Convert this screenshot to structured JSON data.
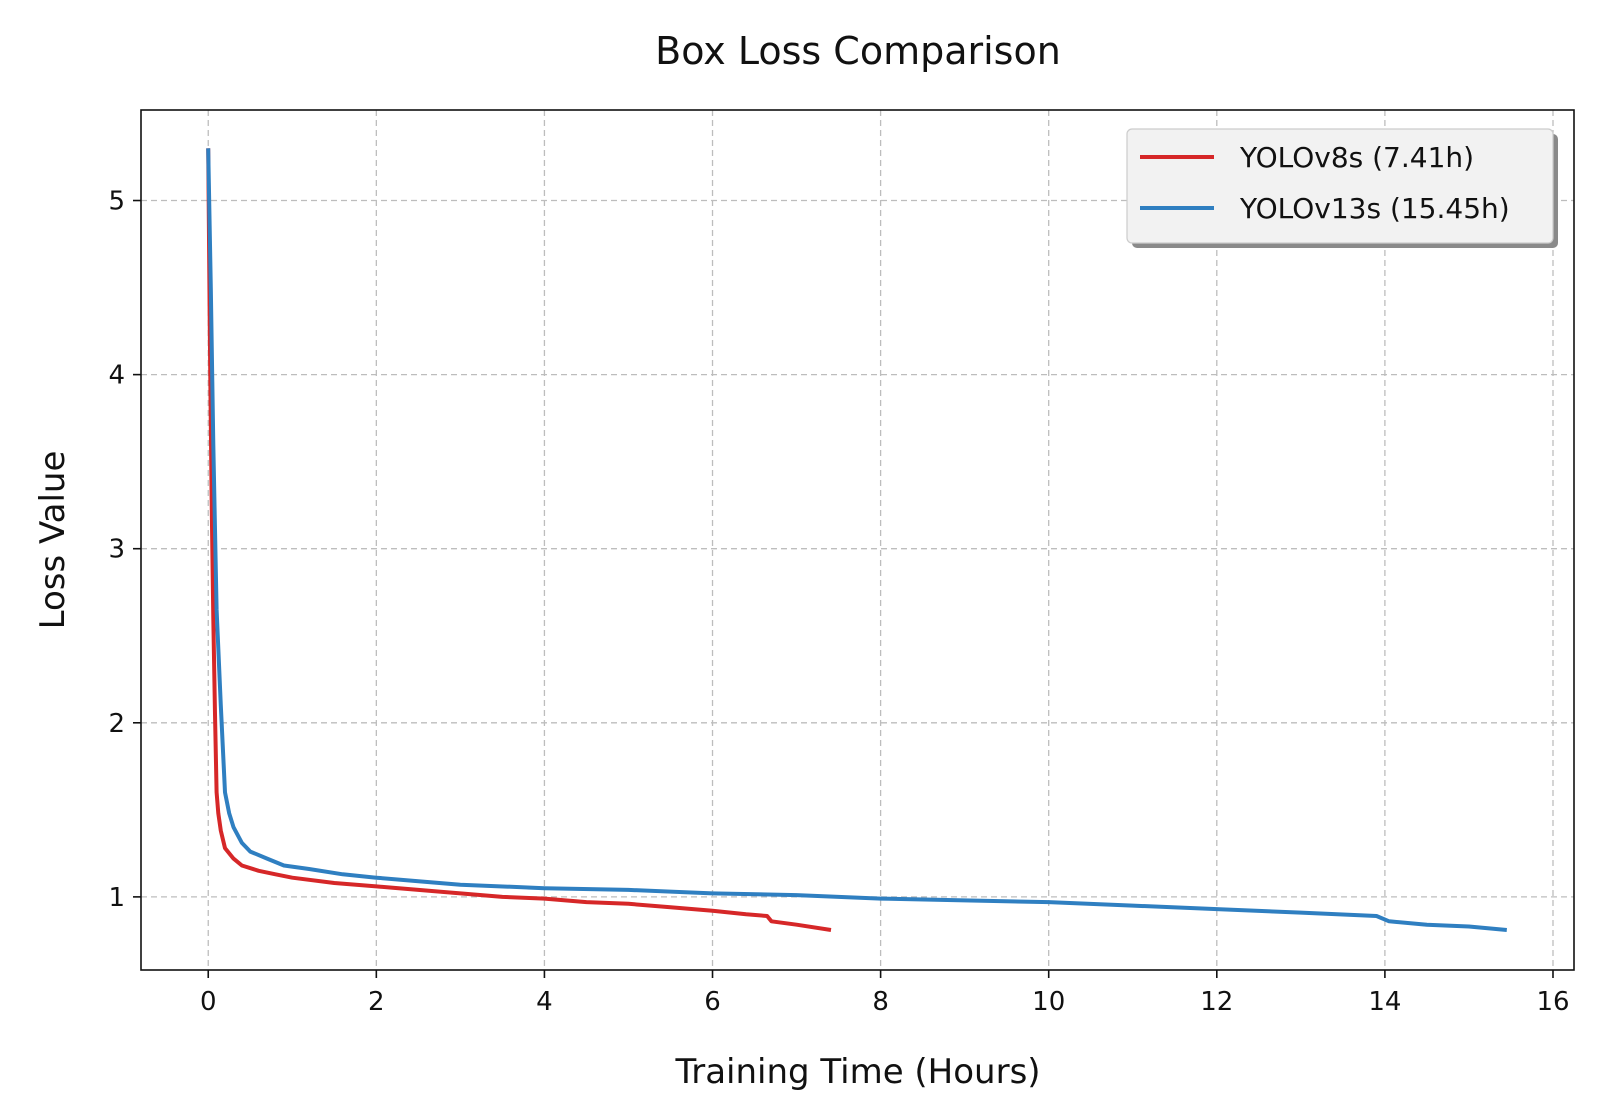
{
  "chart_data": {
    "type": "line",
    "title": "Box Loss Comparison",
    "xlabel": "Training Time (Hours)",
    "ylabel": "Loss Value",
    "xlim": [
      -0.8,
      16.25
    ],
    "ylim": [
      0.58,
      5.52
    ],
    "xticks": [
      0,
      2,
      4,
      6,
      8,
      10,
      12,
      14,
      16
    ],
    "yticks": [
      1,
      2,
      3,
      4,
      5
    ],
    "grid": true,
    "legend_position": "top-right",
    "series": [
      {
        "name": "YOLOv8s (7.41h)",
        "color": "#d62728",
        "x": [
          0,
          0.02,
          0.04,
          0.06,
          0.08,
          0.1,
          0.12,
          0.15,
          0.2,
          0.3,
          0.4,
          0.6,
          0.8,
          1.0,
          1.5,
          2.0,
          2.5,
          3.0,
          3.5,
          4.0,
          4.5,
          5.0,
          5.5,
          6.0,
          6.4,
          6.65,
          6.7,
          7.0,
          7.41
        ],
        "y": [
          5.3,
          4.2,
          3.3,
          2.6,
          2.05,
          1.6,
          1.48,
          1.38,
          1.28,
          1.22,
          1.18,
          1.15,
          1.13,
          1.11,
          1.08,
          1.06,
          1.04,
          1.02,
          1.0,
          0.99,
          0.97,
          0.96,
          0.94,
          0.92,
          0.9,
          0.89,
          0.86,
          0.84,
          0.81
        ]
      },
      {
        "name": "YOLOv13s (15.45h)",
        "color": "#2f7fc1",
        "x": [
          0,
          0.03,
          0.06,
          0.1,
          0.15,
          0.2,
          0.25,
          0.3,
          0.4,
          0.5,
          0.7,
          0.9,
          1.2,
          1.6,
          2.0,
          2.5,
          3.0,
          4.0,
          5.0,
          6.0,
          7.0,
          8.0,
          9.0,
          10.0,
          11.0,
          12.0,
          13.0,
          13.9,
          14.05,
          14.5,
          15.0,
          15.45
        ],
        "y": [
          5.3,
          4.5,
          3.6,
          2.65,
          2.1,
          1.6,
          1.48,
          1.4,
          1.31,
          1.26,
          1.22,
          1.18,
          1.16,
          1.13,
          1.11,
          1.09,
          1.07,
          1.05,
          1.04,
          1.02,
          1.01,
          0.99,
          0.98,
          0.97,
          0.95,
          0.93,
          0.91,
          0.89,
          0.86,
          0.84,
          0.83,
          0.81
        ]
      }
    ]
  }
}
